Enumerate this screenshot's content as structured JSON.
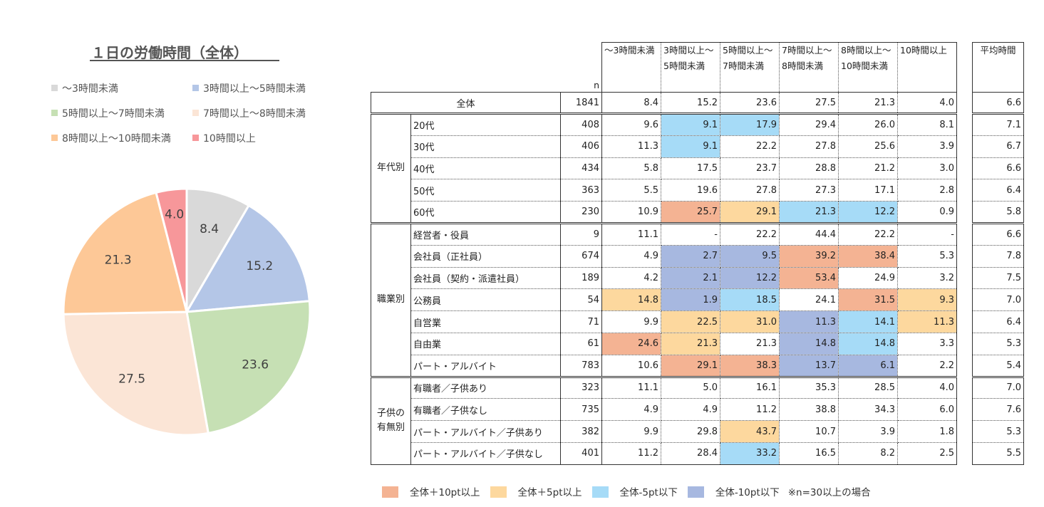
{
  "colors": {
    "plus10": "#f4b393",
    "plus5": "#fdd89e",
    "minus5": "#a6dbf7",
    "minus10": "#a7b8e0"
  },
  "pie": {
    "title": "１日の労働時間（全体）",
    "legend": [
      "～3時間未満",
      "3時間以上～5時間未満",
      "5時間以上～7時間未満",
      "7時間以上～8時間未満",
      "8時間以上～10時間未満",
      "10時間以上"
    ]
  },
  "chart_data": [
    {
      "type": "pie",
      "title": "１日の労働時間（全体）",
      "categories": [
        "～3時間未満",
        "3時間以上～5時間未満",
        "5時間以上～7時間未満",
        "7時間以上～8時間未満",
        "8時間以上～10時間未満",
        "10時間以上"
      ],
      "values": [
        8.4,
        15.2,
        23.6,
        27.5,
        21.3,
        4.0
      ],
      "value_labels": [
        "8.4",
        "15.2",
        "23.6",
        "27.5",
        "21.3",
        "4.0"
      ],
      "colors": [
        "#d9d9d9",
        "#b4c6e7",
        "#c6e0b4",
        "#fbe5d6",
        "#fdc897",
        "#f7979a"
      ],
      "legend_position": "top"
    },
    {
      "type": "table",
      "headers": {
        "n": "n",
        "columns": [
          [
            "～3時間未満",
            ""
          ],
          [
            "3時間以上～",
            "5時間未満"
          ],
          [
            "5時間以上～",
            "7時間未満"
          ],
          [
            "7時間以上～",
            "8時間未満"
          ],
          [
            "8時間以上～",
            "10時間未満"
          ],
          [
            "10時間以上",
            ""
          ]
        ],
        "average": "平均時間"
      },
      "total": {
        "label": "全体",
        "n": "1841",
        "values": [
          "8.4",
          "15.2",
          "23.6",
          "27.5",
          "21.3",
          "4.0"
        ],
        "average": "6.6"
      },
      "groups": [
        {
          "label": [
            "年代別"
          ],
          "rows": [
            {
              "label": "20代",
              "n": "408",
              "values": [
                "9.6",
                "9.1",
                "17.9",
                "29.4",
                "26.0",
                "8.1"
              ],
              "average": "7.1",
              "highlight": [
                "",
                "minus5",
                "minus5",
                "",
                "",
                ""
              ]
            },
            {
              "label": "30代",
              "n": "406",
              "values": [
                "11.3",
                "9.1",
                "22.2",
                "27.8",
                "25.6",
                "3.9"
              ],
              "average": "6.7",
              "highlight": [
                "",
                "minus5",
                "",
                "",
                "",
                ""
              ]
            },
            {
              "label": "40代",
              "n": "434",
              "values": [
                "5.8",
                "17.5",
                "23.7",
                "28.8",
                "21.2",
                "3.0"
              ],
              "average": "6.6",
              "highlight": [
                "",
                "",
                "",
                "",
                "",
                ""
              ]
            },
            {
              "label": "50代",
              "n": "363",
              "values": [
                "5.5",
                "19.6",
                "27.8",
                "27.3",
                "17.1",
                "2.8"
              ],
              "average": "6.4",
              "highlight": [
                "",
                "",
                "",
                "",
                "",
                ""
              ]
            },
            {
              "label": "60代",
              "n": "230",
              "values": [
                "10.9",
                "25.7",
                "29.1",
                "21.3",
                "12.2",
                "0.9"
              ],
              "average": "5.8",
              "highlight": [
                "",
                "plus10",
                "plus5",
                "minus5",
                "minus5",
                ""
              ]
            }
          ]
        },
        {
          "label": [
            "職業別"
          ],
          "rows": [
            {
              "label": "経営者・役員",
              "n": "9",
              "values": [
                "11.1",
                "-",
                "22.2",
                "44.4",
                "22.2",
                "-"
              ],
              "average": "6.6",
              "highlight": [
                "",
                "",
                "",
                "",
                "",
                ""
              ]
            },
            {
              "label": "会社員（正社員）",
              "n": "674",
              "values": [
                "4.9",
                "2.7",
                "9.5",
                "39.2",
                "38.4",
                "5.3"
              ],
              "average": "7.8",
              "highlight": [
                "",
                "minus10",
                "minus10",
                "plus10",
                "plus10",
                ""
              ]
            },
            {
              "label": "会社員（契約・派遣社員）",
              "n": "189",
              "values": [
                "4.2",
                "2.1",
                "12.2",
                "53.4",
                "24.9",
                "3.2"
              ],
              "average": "7.5",
              "highlight": [
                "",
                "minus10",
                "minus10",
                "plus10",
                "",
                ""
              ]
            },
            {
              "label": "公務員",
              "n": "54",
              "values": [
                "14.8",
                "1.9",
                "18.5",
                "24.1",
                "31.5",
                "9.3"
              ],
              "average": "7.0",
              "highlight": [
                "plus5",
                "minus10",
                "minus5",
                "",
                "plus10",
                "plus5"
              ]
            },
            {
              "label": "自営業",
              "n": "71",
              "values": [
                "9.9",
                "22.5",
                "31.0",
                "11.3",
                "14.1",
                "11.3"
              ],
              "average": "6.4",
              "highlight": [
                "",
                "plus5",
                "plus5",
                "minus10",
                "minus5",
                "plus5"
              ]
            },
            {
              "label": "自由業",
              "n": "61",
              "values": [
                "24.6",
                "21.3",
                "21.3",
                "14.8",
                "14.8",
                "3.3"
              ],
              "average": "5.3",
              "highlight": [
                "plus10",
                "plus5",
                "",
                "minus10",
                "minus5",
                ""
              ]
            },
            {
              "label": "パート・アルバイト",
              "n": "783",
              "values": [
                "10.6",
                "29.1",
                "38.3",
                "13.7",
                "6.1",
                "2.2"
              ],
              "average": "5.4",
              "highlight": [
                "",
                "plus10",
                "plus10",
                "minus10",
                "minus10",
                ""
              ]
            }
          ]
        },
        {
          "label": [
            "子供の",
            "有無別"
          ],
          "rows": [
            {
              "label": "有職者／子供あり",
              "n": "323",
              "values": [
                "11.1",
                "5.0",
                "16.1",
                "35.3",
                "28.5",
                "4.0"
              ],
              "average": "7.0",
              "highlight": [
                "",
                "",
                "",
                "",
                "",
                ""
              ]
            },
            {
              "label": "有職者／子供なし",
              "n": "735",
              "values": [
                "4.9",
                "4.9",
                "11.2",
                "38.8",
                "34.3",
                "6.0"
              ],
              "average": "7.6",
              "highlight": [
                "",
                "",
                "",
                "",
                "",
                ""
              ]
            },
            {
              "label": "パート・アルバイト／子供あり",
              "n": "382",
              "values": [
                "9.9",
                "29.8",
                "43.7",
                "10.7",
                "3.9",
                "1.8"
              ],
              "average": "5.3",
              "highlight": [
                "",
                "",
                "plus5",
                "",
                "",
                ""
              ]
            },
            {
              "label": "パート・アルバイト／子供なし",
              "n": "401",
              "values": [
                "11.2",
                "28.4",
                "33.2",
                "16.5",
                "8.2",
                "2.5"
              ],
              "average": "5.5",
              "highlight": [
                "",
                "",
                "minus5",
                "",
                "",
                ""
              ]
            }
          ]
        }
      ]
    }
  ],
  "condition_legend": {
    "items": [
      {
        "key": "plus10",
        "label": "全体＋10pt以上"
      },
      {
        "key": "plus5",
        "label": "全体＋5pt以上"
      },
      {
        "key": "minus5",
        "label": "全体-5pt以下"
      },
      {
        "key": "minus10",
        "label": "全体-10pt以下"
      }
    ],
    "note": "※n=30以上の場合"
  }
}
